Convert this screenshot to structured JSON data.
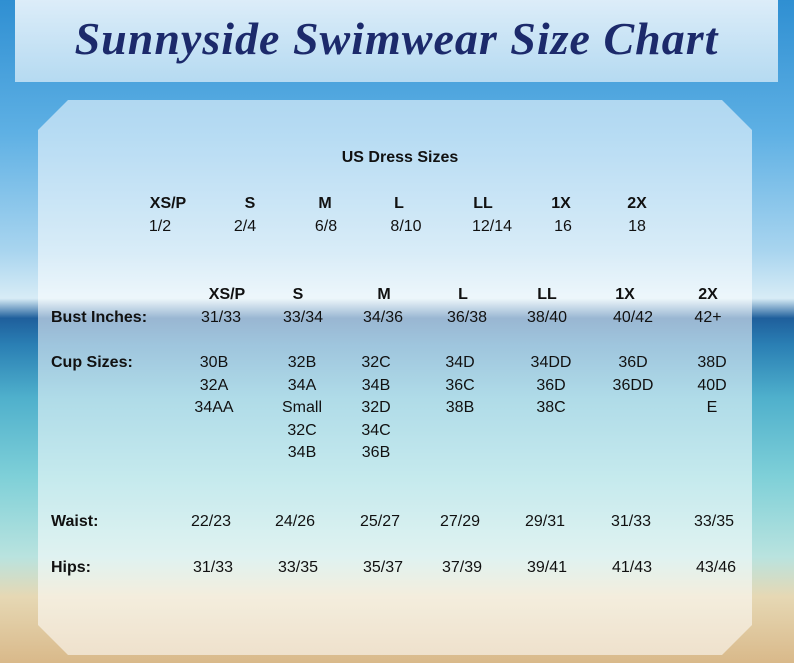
{
  "title": "Sunnyside Swimwear Size Chart",
  "dress_sizes": {
    "heading": "US Dress Sizes",
    "sizes": [
      "XS/P",
      "S",
      "M",
      "L",
      "LL",
      "1X",
      "2X"
    ],
    "numbers": [
      "1/2",
      "2/4",
      "6/8",
      "8/10",
      "12/14",
      "16",
      "18"
    ]
  },
  "size_chart": {
    "sizes": [
      "XS/P",
      "S",
      "M",
      "L",
      "LL",
      "1X",
      "2X"
    ],
    "rows": [
      {
        "label": "Bust Inches:",
        "values": [
          [
            "31/33"
          ],
          [
            "33/34"
          ],
          [
            "34/36"
          ],
          [
            "36/38"
          ],
          [
            "38/40"
          ],
          [
            "40/42"
          ],
          [
            "42+"
          ]
        ]
      },
      {
        "label": "Cup Sizes:",
        "values": [
          [
            "30B",
            "32A",
            "34AA"
          ],
          [
            "32B",
            "34A",
            "Small",
            "32C",
            "34B"
          ],
          [
            "32C",
            "34B",
            "32D",
            "34C",
            "36B"
          ],
          [
            "34D",
            "36C",
            "38B"
          ],
          [
            "34DD",
            "36D",
            "38C"
          ],
          [
            "36D",
            "36DD"
          ],
          [
            "38D",
            "40D",
            "E"
          ]
        ]
      },
      {
        "label": "Waist:",
        "values": [
          [
            "22/23"
          ],
          [
            "24/26"
          ],
          [
            "25/27"
          ],
          [
            "27/29"
          ],
          [
            "29/31"
          ],
          [
            "31/33"
          ],
          [
            "33/35"
          ]
        ]
      },
      {
        "label": "Hips:",
        "values": [
          [
            "31/33"
          ],
          [
            "33/35"
          ],
          [
            "35/37"
          ],
          [
            "37/39"
          ],
          [
            "39/41"
          ],
          [
            "41/43"
          ],
          [
            "43/46"
          ]
        ]
      }
    ]
  }
}
